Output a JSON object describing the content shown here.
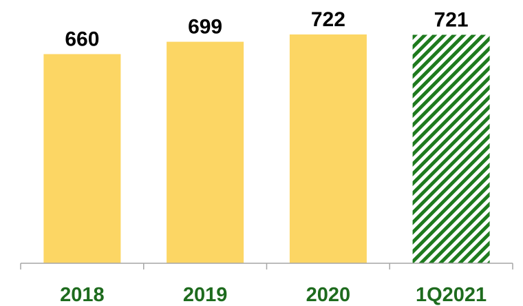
{
  "chart_data": {
    "type": "bar",
    "categories": [
      "2018",
      "2019",
      "2020",
      "1Q2021"
    ],
    "values": [
      660,
      699,
      722,
      721
    ],
    "value_labels": [
      "660",
      "699",
      "722",
      "721"
    ],
    "title": "",
    "xlabel": "",
    "ylabel": "",
    "ylim": [
      0,
      722
    ],
    "grid": false,
    "legend": "none",
    "bar_styles": [
      "solid",
      "solid",
      "solid",
      "hatched"
    ]
  },
  "colors": {
    "bar_fill": "#FCD664",
    "hatch_stripe": "#1E7A1E",
    "hatch_background": "#FFFFFF",
    "category_label": "#1E6B1E",
    "value_label": "#000000",
    "axis": "#A6A6A6"
  }
}
